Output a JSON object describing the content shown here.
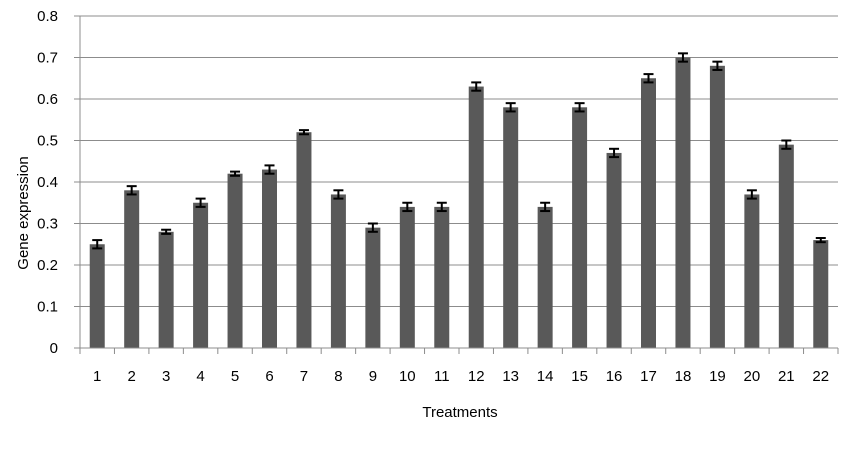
{
  "chart_data": {
    "type": "bar",
    "xlabel": "Treatments",
    "ylabel": "Gene expression",
    "ylim": [
      0,
      0.8
    ],
    "yticks": [
      "0",
      "0.1",
      "0.2",
      "0.3",
      "0.4",
      "0.5",
      "0.6",
      "0.7",
      "0.8"
    ],
    "grid": true,
    "legend": "none",
    "bar_color": "#595959",
    "categories": [
      "1",
      "2",
      "3",
      "4",
      "5",
      "6",
      "7",
      "8",
      "9",
      "10",
      "11",
      "12",
      "13",
      "14",
      "15",
      "16",
      "17",
      "18",
      "19",
      "20",
      "21",
      "22"
    ],
    "values": [
      0.25,
      0.38,
      0.28,
      0.35,
      0.42,
      0.43,
      0.52,
      0.37,
      0.29,
      0.34,
      0.34,
      0.63,
      0.58,
      0.34,
      0.58,
      0.47,
      0.65,
      0.7,
      0.68,
      0.37,
      0.49,
      0.26
    ],
    "errors": [
      0.01,
      0.01,
      0.005,
      0.01,
      0.005,
      0.01,
      0.005,
      0.01,
      0.01,
      0.01,
      0.01,
      0.01,
      0.01,
      0.01,
      0.01,
      0.01,
      0.01,
      0.01,
      0.01,
      0.01,
      0.01,
      0.005
    ]
  }
}
